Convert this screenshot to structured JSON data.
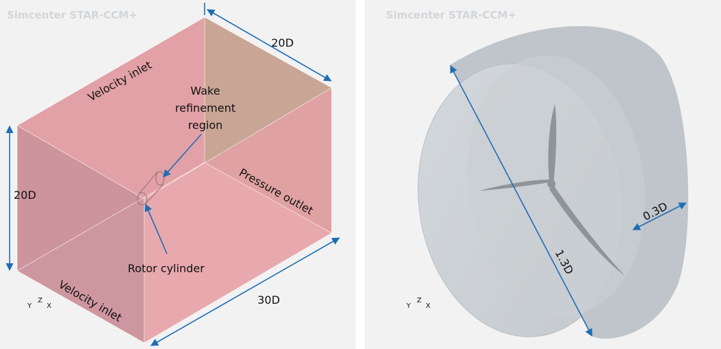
{
  "left_panel": {
    "watermark": "Simcenter STAR-CCM+",
    "labels": {
      "top_depth": "20D",
      "top_face": "Velocity inlet",
      "wake": [
        "Wake",
        "refinement",
        "region"
      ],
      "height": "20D",
      "outlet": "Pressure outlet",
      "rotor": "Rotor cylinder",
      "length": "30D",
      "front_face": "Velocity inlet"
    },
    "axes": [
      "Y",
      "Z",
      "X"
    ]
  },
  "right_panel": {
    "watermark": "Simcenter STAR-CCM+",
    "labels": {
      "diameter": "1.3D",
      "thickness": "0.3D"
    },
    "axes": [
      "Y",
      "Z",
      "X"
    ]
  }
}
